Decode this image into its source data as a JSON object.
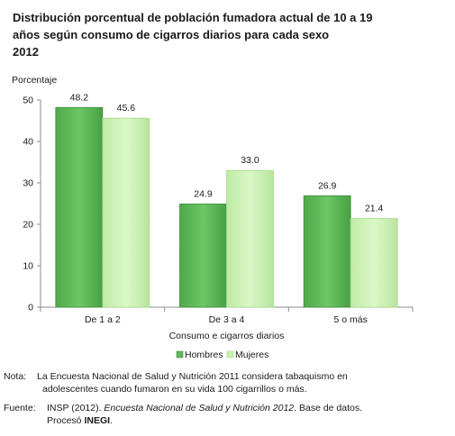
{
  "title_lines": [
    "Distribución porcentual de población fumadora actual de 10 a 19",
    "años según consumo de cigarros diarios para cada sexo",
    "2012"
  ],
  "chart_data": {
    "type": "bar",
    "ylabel": "Porcentaje",
    "xlabel": "Consumo e cigarros diarios",
    "categories": [
      "De 1 a 2",
      "De 3 a 4",
      "5 o más"
    ],
    "ylim": [
      0,
      50
    ],
    "yticks": [
      0,
      10,
      20,
      30,
      40,
      50
    ],
    "series": [
      {
        "name": "Hombres",
        "values": [
          48.2,
          24.9,
          26.9
        ],
        "color": "#5cb85c"
      },
      {
        "name": "Mujeres",
        "values": [
          45.6,
          33.0,
          21.4
        ],
        "color": "#c9f2b0"
      }
    ],
    "legend_position": "bottom",
    "grid": false
  },
  "notes": {
    "nota_label": "Nota:",
    "nota_lines": [
      "La Encuesta Nacional de Salud y Nutrición 2011 considera tabaquismo en",
      "adolescentes cuando fumaron en su vida 100 cigarrillos o más."
    ],
    "fuente_label": "Fuente:",
    "fuente_prefix": "INSP (2012). ",
    "fuente_italic": "Encuesta Nacional de Salud y Nutrición 2012",
    "fuente_suffix": ". Base de datos.",
    "procesado_prefix": "Procesó ",
    "procesado_bold": "INEGI",
    "procesado_suffix": "."
  }
}
